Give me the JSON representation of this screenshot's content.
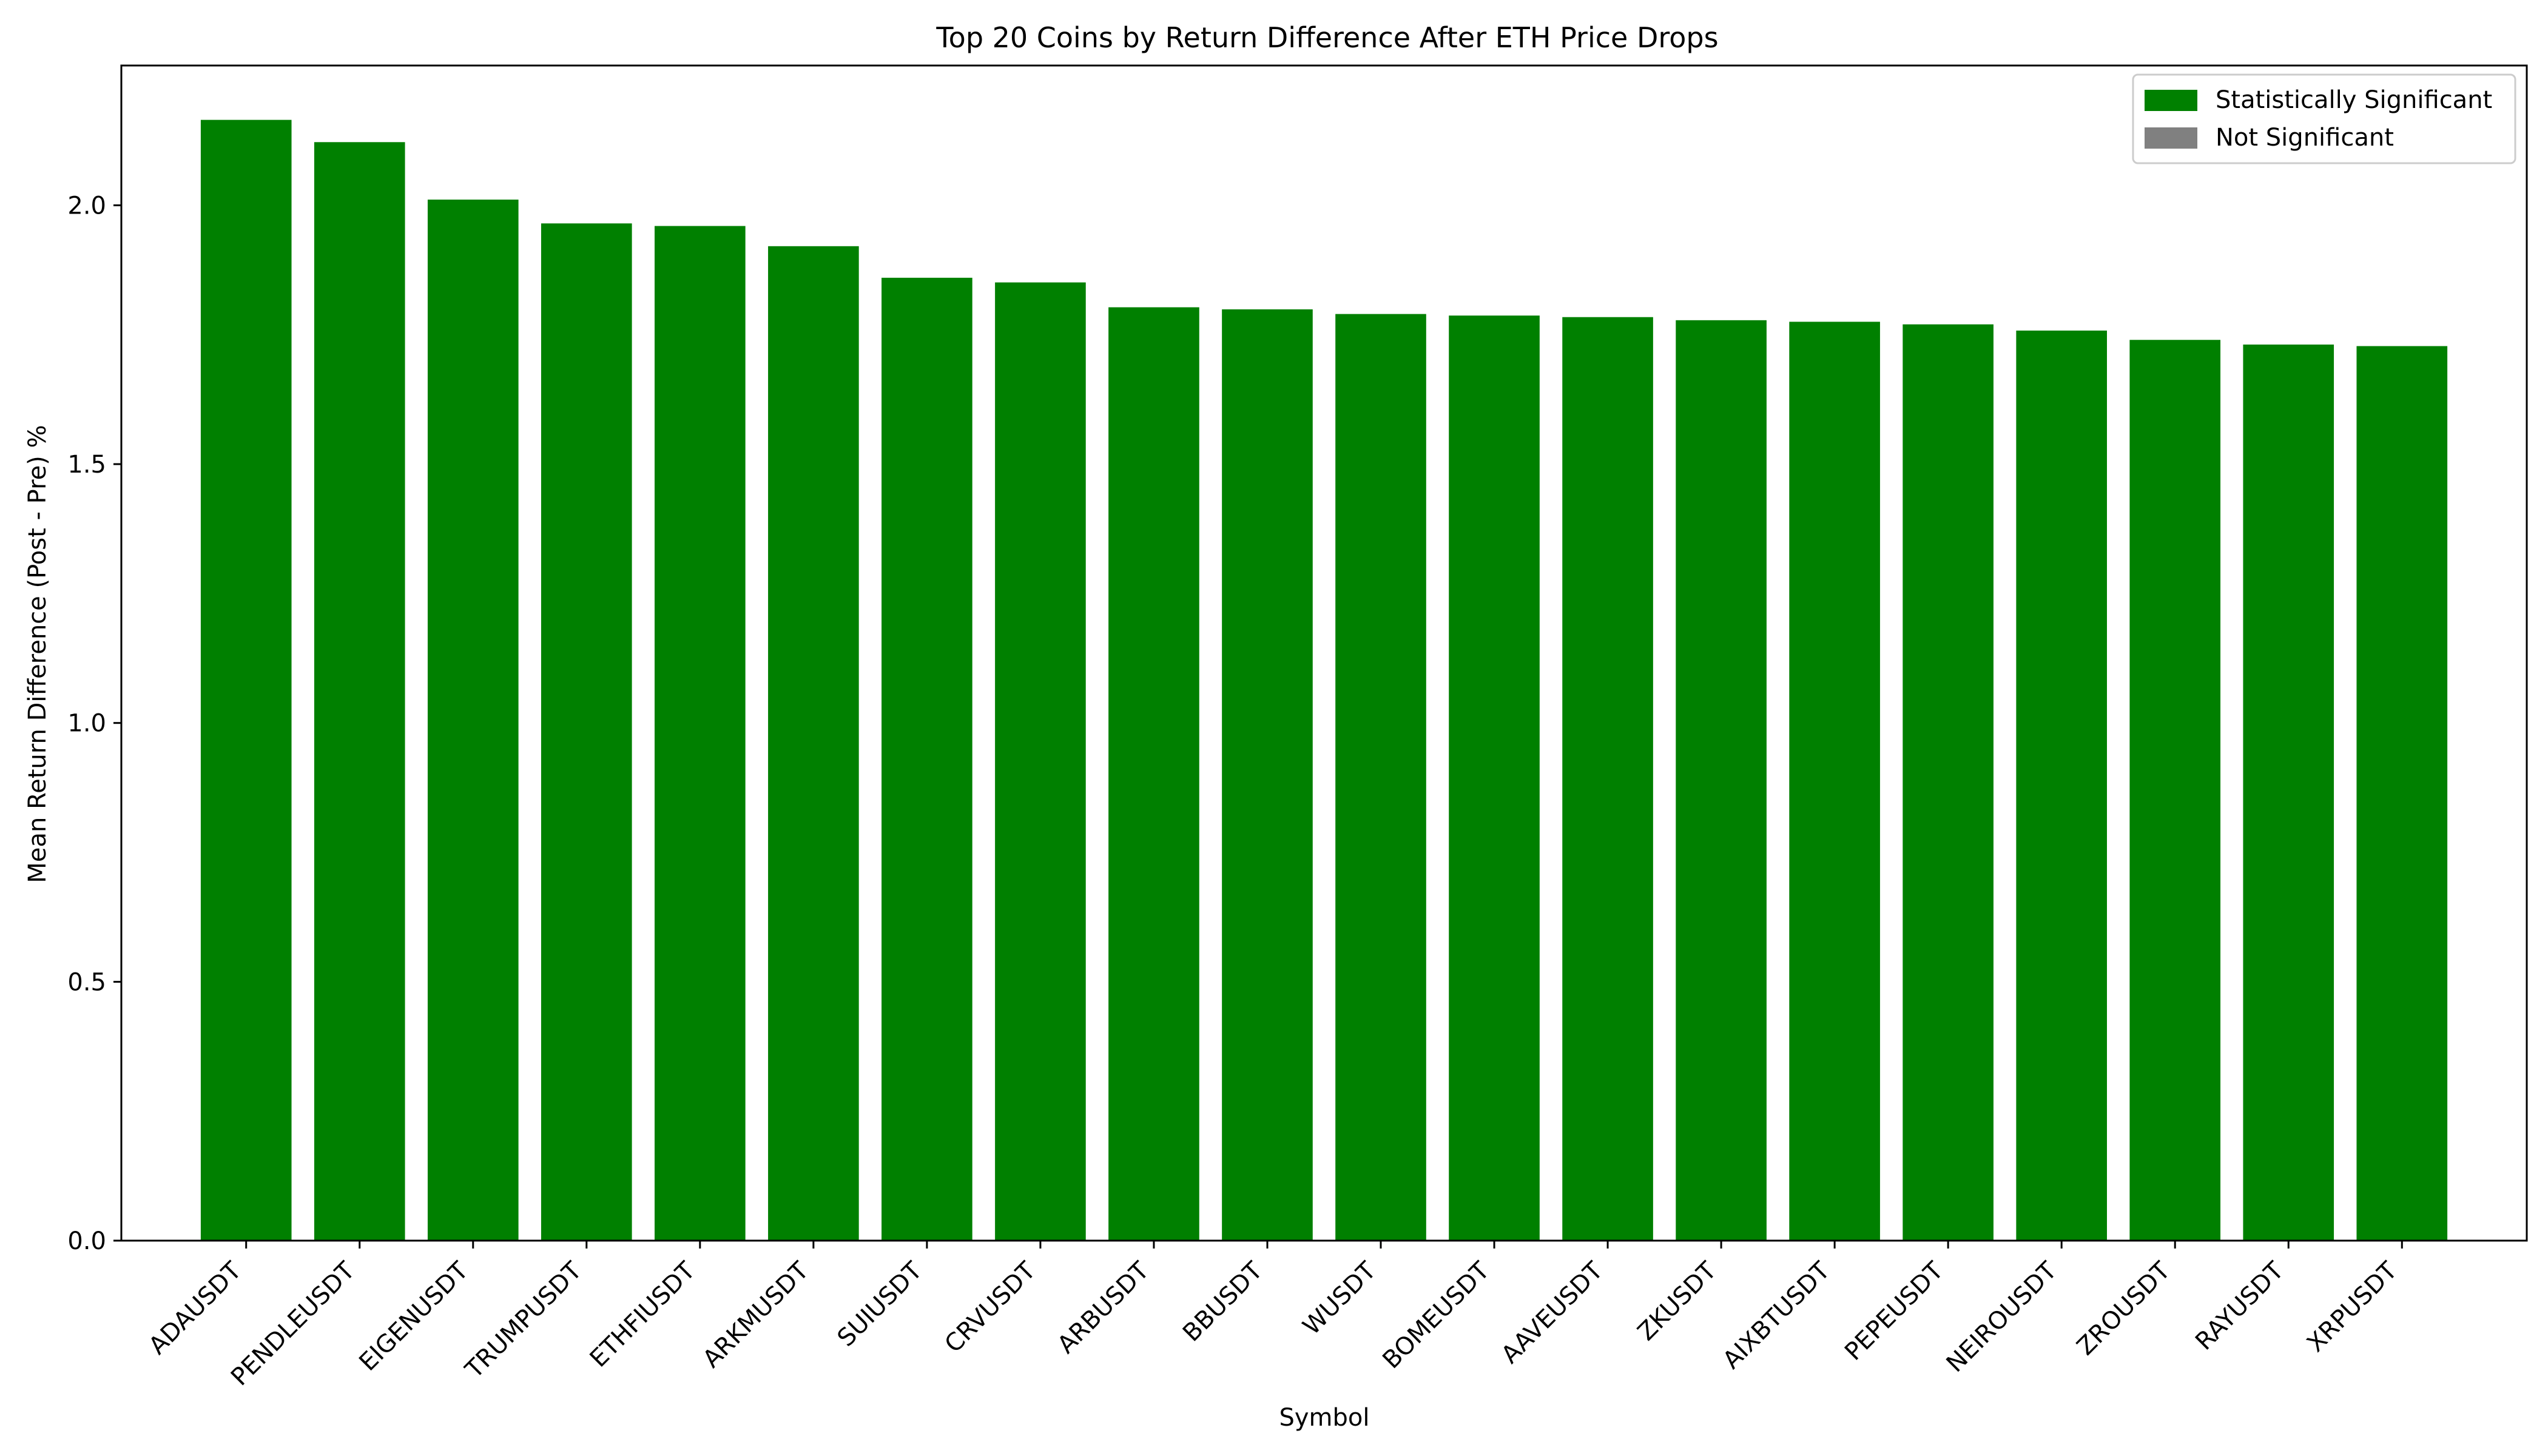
{
  "chart_data": {
    "type": "bar",
    "title": "Top 20 Coins by Return Difference After ETH Price Drops",
    "xlabel": "Symbol",
    "ylabel": "Mean Return Difference (Post - Pre) %",
    "ylim": [
      0,
      2.27
    ],
    "yticks": [
      0.0,
      0.5,
      1.0,
      1.5,
      2.0
    ],
    "ytick_labels": [
      "0.0",
      "0.5",
      "1.0",
      "1.5",
      "2.0"
    ],
    "grid": false,
    "legend_position": "top-right",
    "baseline_color": "#8b0000",
    "categories": [
      "ADAUSDT",
      "PENDLEUSDT",
      "EIGENUSDT",
      "TRUMPUSDT",
      "ETHFIUSDT",
      "ARKMUSDT",
      "SUIUSDT",
      "CRVUSDT",
      "ARBUSDT",
      "BBUSDT",
      "WUSDT",
      "BOMEUSDT",
      "AAVEUSDT",
      "ZKUSDT",
      "AIXBTUSDT",
      "PEPEUSDT",
      "NEIROUSDT",
      "ZROUSDT",
      "RAYUSDT",
      "XRPUSDT"
    ],
    "values": [
      2.165,
      2.122,
      2.011,
      1.965,
      1.96,
      1.921,
      1.86,
      1.851,
      1.803,
      1.799,
      1.79,
      1.787,
      1.784,
      1.778,
      1.775,
      1.77,
      1.758,
      1.74,
      1.731,
      1.728
    ],
    "significant": [
      true,
      true,
      true,
      true,
      true,
      true,
      true,
      true,
      true,
      true,
      true,
      true,
      true,
      true,
      true,
      true,
      true,
      true,
      true,
      true
    ],
    "colors": {
      "significant": "#008000",
      "not_significant": "#808080"
    },
    "legend": [
      {
        "label": "Statistically Significant",
        "color": "#008000"
      },
      {
        "label": "Not Significant",
        "color": "#808080"
      }
    ]
  }
}
